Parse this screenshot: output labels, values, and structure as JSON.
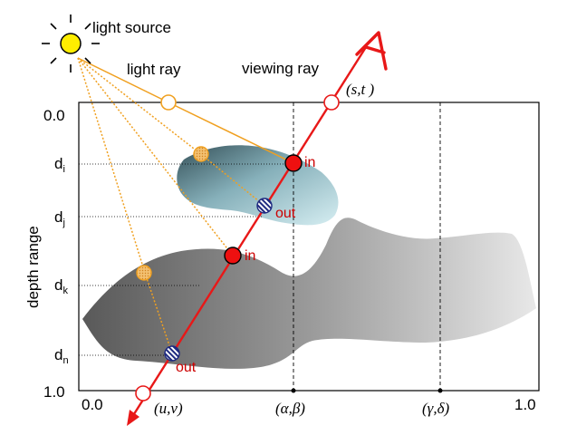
{
  "labels": {
    "light_source": "light source",
    "light_ray": "light ray",
    "viewing_ray": "viewing ray",
    "depth_range": "depth range",
    "in": "in",
    "out": "out",
    "st": "(s,t )",
    "uv": "(u,v)",
    "ab": "(α,β)",
    "gd": "(γ,δ)",
    "y_top": "0.0",
    "y_bottom": "1.0",
    "x_left": "0.0",
    "x_right": "1.0",
    "d_base": "d",
    "sub_i": "i",
    "sub_j": "j",
    "sub_k": "k",
    "sub_n": "n"
  },
  "colors": {
    "ray_red": "#e81818",
    "light_orange": "#f0a020",
    "sun_yellow": "#ffee00",
    "text_red": "#cc0000"
  },
  "icons": {
    "sun": "sun-icon",
    "arrow_head": "arrow-icon",
    "eye_letter": "A"
  }
}
